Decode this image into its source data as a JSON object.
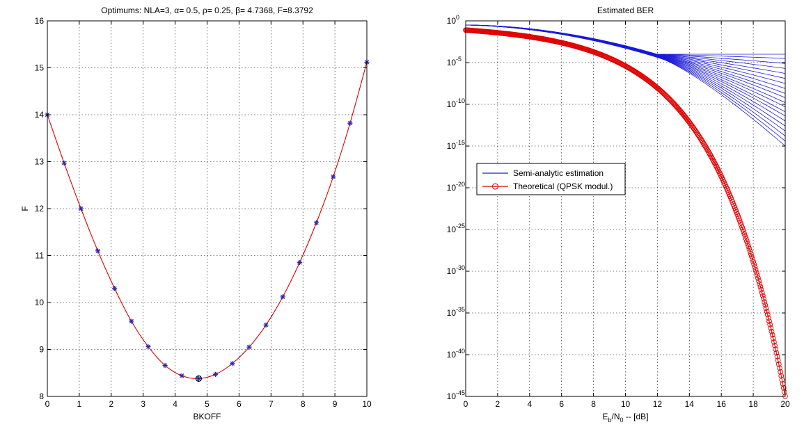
{
  "colors": {
    "axis": "#000000",
    "grid": "#000000",
    "fit_line": "#d40000",
    "markers": "#2a2aa8",
    "semi_analytic": "#1a1adc",
    "theoretical": "#e00000"
  },
  "chart_data": [
    {
      "type": "line",
      "title": "Optimums: NLA=3, α= 0.5, ρ= 0.25, β= 4.7368, F=8.3792",
      "xlabel": "BKOFF",
      "ylabel": "F",
      "xlim": [
        0,
        10
      ],
      "ylim": [
        8,
        16
      ],
      "grid": true,
      "xticks": [
        "0",
        "1",
        "2",
        "3",
        "4",
        "5",
        "6",
        "7",
        "8",
        "9",
        "10"
      ],
      "yticks": [
        "8",
        "9",
        "10",
        "11",
        "12",
        "13",
        "14",
        "15",
        "16"
      ],
      "series": [
        {
          "style": "red solid line with blue star markers",
          "x": [
            0,
            0.5263,
            1.0526,
            1.5789,
            2.1053,
            2.6316,
            3.1579,
            3.6842,
            4.2105,
            4.7368,
            5.2632,
            5.7895,
            6.3158,
            6.8421,
            7.3684,
            7.8947,
            8.4211,
            8.9474,
            9.4737,
            10
          ],
          "y": [
            14.0,
            12.97,
            12.0,
            11.1,
            10.3,
            9.6,
            9.06,
            8.66,
            8.44,
            8.3792,
            8.47,
            8.7,
            9.05,
            9.52,
            10.12,
            10.85,
            11.7,
            12.68,
            13.82,
            15.12
          ]
        }
      ],
      "optimum": {
        "x": 4.7368,
        "y": 8.3792,
        "marker": "circle"
      }
    },
    {
      "type": "line",
      "title": "Estimated BER",
      "xlabel": "Eb/N0 -- [dB]",
      "ylabel": "",
      "xlim": [
        0,
        20
      ],
      "ylim": [
        1e-45,
        1
      ],
      "y_scale": "log",
      "grid": true,
      "legend_position": "middle-left",
      "xticks": [
        "0",
        "2",
        "4",
        "6",
        "8",
        "10",
        "12",
        "14",
        "16",
        "18",
        "20"
      ],
      "yticks": [
        {
          "base": "10",
          "exp": "0"
        },
        {
          "base": "10",
          "exp": "-5"
        },
        {
          "base": "10",
          "exp": "-10"
        },
        {
          "base": "10",
          "exp": "-15"
        },
        {
          "base": "10",
          "exp": "-20"
        },
        {
          "base": "10",
          "exp": "-25"
        },
        {
          "base": "10",
          "exp": "-30"
        },
        {
          "base": "10",
          "exp": "-35"
        },
        {
          "base": "10",
          "exp": "-40"
        },
        {
          "base": "10",
          "exp": "-45"
        }
      ],
      "series": [
        {
          "name": "Semi-analytic estimation",
          "style": "blue thin lines (family of 20 curves)",
          "x": [
            0,
            2,
            4,
            6,
            8,
            10,
            12,
            14,
            16,
            18,
            20
          ],
          "y_range_at_x": [
            {
              "x": 0,
              "min": 0.1,
              "max": 0.1
            },
            {
              "x": 12,
              "min": 0.0001,
              "max": 0.0001
            },
            {
              "x": 20,
              "min": 1e-15,
              "max": 0.0001
            }
          ],
          "families_log10_endpoints": [
            -4.0,
            -4.5,
            -5.1,
            -5.7,
            -6.3,
            -6.9,
            -7.5,
            -8.1,
            -8.7,
            -9.2,
            -9.8,
            -10.3,
            -10.9,
            -11.4,
            -12.0,
            -12.6,
            -13.2,
            -13.8,
            -14.4,
            -15.0
          ]
        },
        {
          "name": "Theoretical (QPSK modul.)",
          "style": "red line with dense circle markers",
          "x": [
            0,
            2,
            4,
            6,
            8,
            10,
            12,
            14,
            16,
            18,
            20
          ],
          "y": [
            0.0786,
            0.0375,
            0.0125,
            0.0024,
            0.00019,
            3.87e-06,
            9e-09,
            2.06e-12,
            1.1e-17,
            1e-25,
            2e-45
          ]
        }
      ]
    }
  ]
}
